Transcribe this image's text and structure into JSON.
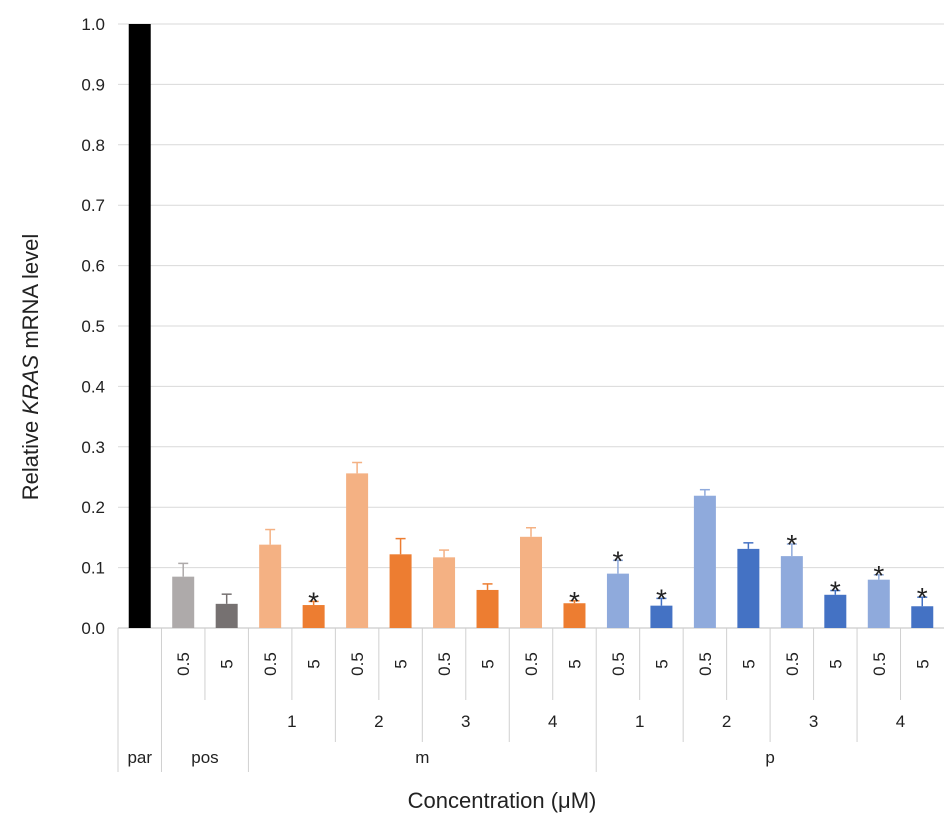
{
  "chart_data": {
    "type": "bar",
    "ylabel_parts": [
      "Relative ",
      "KRAS",
      " mRNA level"
    ],
    "xlabel": "Concentration (μM)",
    "ylim": [
      0,
      1.0
    ],
    "yticks": [
      "0.0",
      "0.1",
      "0.2",
      "0.3",
      "0.4",
      "0.5",
      "0.6",
      "0.7",
      "0.8",
      "0.9",
      "1.0"
    ],
    "grid": true,
    "bars": [
      {
        "group": "par",
        "compound": "",
        "conc": "",
        "value": 1.0,
        "err": 0,
        "color": "#000000",
        "sig": false
      },
      {
        "group": "pos",
        "compound": "",
        "conc": "0.5",
        "value": 0.085,
        "err": 0.022,
        "color": "#aeaaaa",
        "sig": false
      },
      {
        "group": "pos",
        "compound": "",
        "conc": "5",
        "value": 0.04,
        "err": 0.016,
        "color": "#767171",
        "sig": false
      },
      {
        "group": "m",
        "compound": "1",
        "conc": "0.5",
        "value": 0.138,
        "err": 0.025,
        "color": "#f4b183",
        "sig": false
      },
      {
        "group": "m",
        "compound": "1",
        "conc": "5",
        "value": 0.038,
        "err": 0.006,
        "color": "#ed7d31",
        "sig": true
      },
      {
        "group": "m",
        "compound": "2",
        "conc": "0.5",
        "value": 0.256,
        "err": 0.018,
        "color": "#f4b183",
        "sig": false
      },
      {
        "group": "m",
        "compound": "2",
        "conc": "5",
        "value": 0.122,
        "err": 0.026,
        "color": "#ed7d31",
        "sig": false
      },
      {
        "group": "m",
        "compound": "3",
        "conc": "0.5",
        "value": 0.117,
        "err": 0.012,
        "color": "#f4b183",
        "sig": false
      },
      {
        "group": "m",
        "compound": "3",
        "conc": "5",
        "value": 0.063,
        "err": 0.01,
        "color": "#ed7d31",
        "sig": false
      },
      {
        "group": "m",
        "compound": "4",
        "conc": "0.5",
        "value": 0.151,
        "err": 0.015,
        "color": "#f4b183",
        "sig": false
      },
      {
        "group": "m",
        "compound": "4",
        "conc": "5",
        "value": 0.041,
        "err": 0.004,
        "color": "#ed7d31",
        "sig": true
      },
      {
        "group": "p",
        "compound": "1",
        "conc": "0.5",
        "value": 0.09,
        "err": 0.022,
        "color": "#8faadc",
        "sig": true
      },
      {
        "group": "p",
        "compound": "1",
        "conc": "5",
        "value": 0.037,
        "err": 0.012,
        "color": "#4472c4",
        "sig": true
      },
      {
        "group": "p",
        "compound": "2",
        "conc": "0.5",
        "value": 0.219,
        "err": 0.01,
        "color": "#8faadc",
        "sig": false
      },
      {
        "group": "p",
        "compound": "2",
        "conc": "5",
        "value": 0.131,
        "err": 0.01,
        "color": "#4472c4",
        "sig": false
      },
      {
        "group": "p",
        "compound": "3",
        "conc": "0.5",
        "value": 0.119,
        "err": 0.02,
        "color": "#8faadc",
        "sig": true
      },
      {
        "group": "p",
        "compound": "3",
        "conc": "5",
        "value": 0.055,
        "err": 0.007,
        "color": "#4472c4",
        "sig": true
      },
      {
        "group": "p",
        "compound": "4",
        "conc": "0.5",
        "value": 0.08,
        "err": 0.008,
        "color": "#8faadc",
        "sig": true
      },
      {
        "group": "p",
        "compound": "4",
        "conc": "5",
        "value": 0.036,
        "err": 0.015,
        "color": "#4472c4",
        "sig": true
      }
    ],
    "sig_marker": "*"
  }
}
